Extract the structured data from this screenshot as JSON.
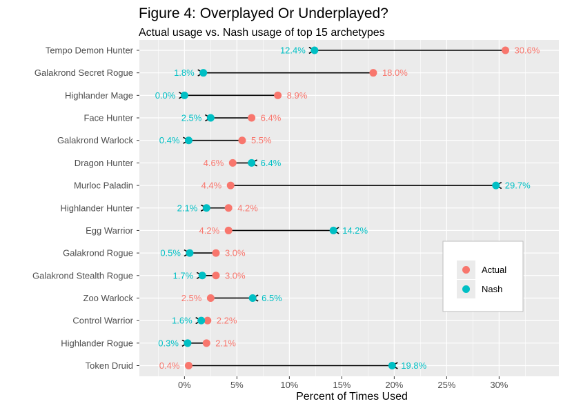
{
  "chart_data": {
    "type": "scatter",
    "title": "Figure 4: Overplayed Or Underplayed?",
    "subtitle": "Actual usage vs. Nash usage of top 15 archetypes",
    "xlabel": "Percent of Times Used",
    "ylabel": "",
    "xlim": [
      -4.3,
      35.7
    ],
    "x_ticks": [
      0,
      5,
      10,
      15,
      20,
      25,
      30
    ],
    "x_tick_labels": [
      "0%",
      "5%",
      "10%",
      "15%",
      "20%",
      "25%",
      "30%"
    ],
    "grid": true,
    "legend_position": "right",
    "colors": {
      "actual": "#F8766D",
      "nash": "#00BFC4",
      "panel": "#EBEBEB",
      "arrow": "#000000"
    },
    "categories": [
      "Tempo Demon Hunter",
      "Galakrond Secret Rogue",
      "Highlander Mage",
      "Face Hunter",
      "Galakrond Warlock",
      "Dragon Hunter",
      "Murloc Paladin",
      "Highlander Hunter",
      "Egg Warrior",
      "Galakrond Rogue",
      "Galakrond Stealth Rogue",
      "Zoo Warlock",
      "Control Warrior",
      "Highlander Rogue",
      "Token Druid"
    ],
    "series": [
      {
        "name": "Actual",
        "values": [
          30.6,
          18.0,
          8.9,
          6.4,
          5.5,
          4.6,
          4.4,
          4.2,
          4.2,
          3.0,
          3.0,
          2.5,
          2.2,
          2.1,
          0.4
        ],
        "labels": [
          "30.6%",
          "18.0%",
          "8.9%",
          "6.4%",
          "5.5%",
          "4.6%",
          "4.4%",
          "4.2%",
          "4.2%",
          "3.0%",
          "3.0%",
          "2.5%",
          "2.2%",
          "2.1%",
          "0.4%"
        ]
      },
      {
        "name": "Nash",
        "values": [
          12.4,
          1.8,
          0.0,
          2.5,
          0.4,
          6.4,
          29.7,
          2.1,
          14.2,
          0.5,
          1.7,
          6.5,
          1.6,
          0.3,
          19.8
        ],
        "labels": [
          "12.4%",
          "1.8%",
          "0.0%",
          "2.5%",
          "0.4%",
          "6.4%",
          "29.7%",
          "2.1%",
          "14.2%",
          "0.5%",
          "1.7%",
          "6.5%",
          "1.6%",
          "0.3%",
          "19.8%"
        ]
      }
    ]
  }
}
